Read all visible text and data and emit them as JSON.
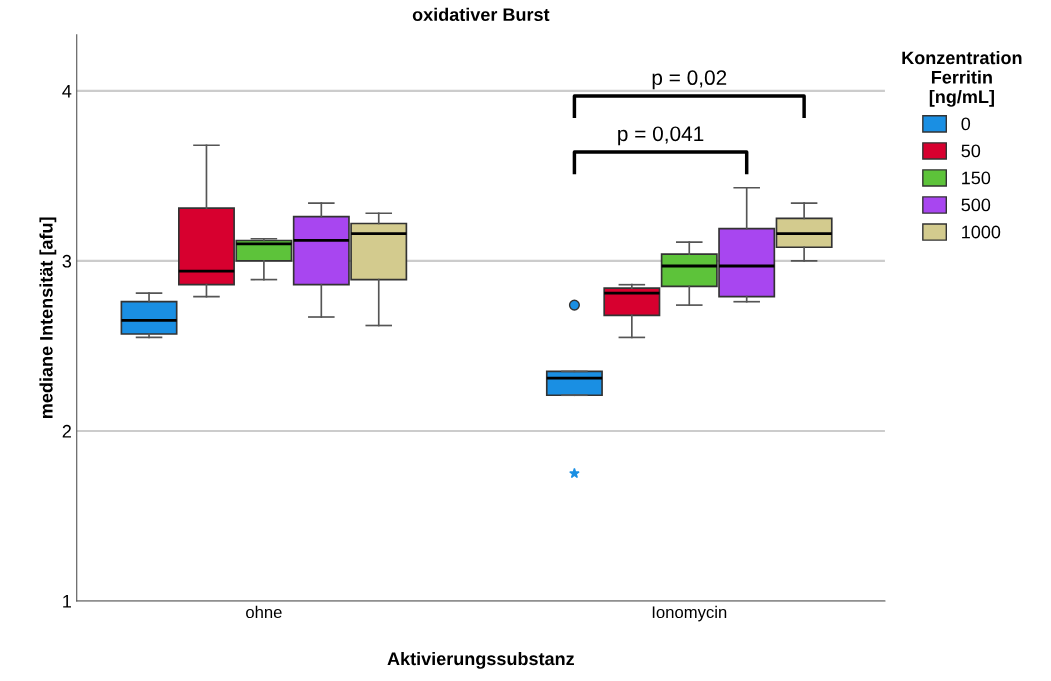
{
  "chart_data": {
    "type": "box",
    "title": "oxidativer Burst",
    "xlabel": "Aktivierungssubstanz",
    "ylabel": "mediane Intensität [afu]",
    "legend_title": "Konzentration\nFerritin\n[ng/mL]",
    "categories": [
      "ohne",
      "Ionomycin"
    ],
    "series": [
      {
        "name": "0",
        "color": "#1a8fe3",
        "boxes": [
          {
            "low": 2.55,
            "q1": 2.57,
            "median": 2.65,
            "q3": 2.76,
            "high": 2.81
          },
          {
            "low": 2.21,
            "q1": 2.21,
            "median": 2.31,
            "q3": 2.35,
            "high": 2.35,
            "outliers": [
              2.74,
              1.75
            ]
          }
        ]
      },
      {
        "name": "50",
        "color": "#d7002f",
        "boxes": [
          {
            "low": 2.79,
            "q1": 2.86,
            "median": 2.94,
            "q3": 3.31,
            "high": 3.68
          },
          {
            "low": 2.55,
            "q1": 2.68,
            "median": 2.81,
            "q3": 2.84,
            "high": 2.86
          }
        ]
      },
      {
        "name": "150",
        "color": "#5dc33a",
        "boxes": [
          {
            "low": 2.89,
            "q1": 3.0,
            "median": 3.1,
            "q3": 3.12,
            "high": 3.13
          },
          {
            "low": 2.74,
            "q1": 2.85,
            "median": 2.97,
            "q3": 3.04,
            "high": 3.11
          }
        ]
      },
      {
        "name": "500",
        "color": "#a846f0",
        "boxes": [
          {
            "low": 2.67,
            "q1": 2.86,
            "median": 3.12,
            "q3": 3.26,
            "high": 3.34
          },
          {
            "low": 2.76,
            "q1": 2.79,
            "median": 2.97,
            "q3": 3.19,
            "high": 3.43
          }
        ]
      },
      {
        "name": "1000",
        "color": "#d3cb8e",
        "boxes": [
          {
            "low": 2.62,
            "q1": 2.89,
            "median": 3.16,
            "q3": 3.22,
            "high": 3.28
          },
          {
            "low": 3.0,
            "q1": 3.08,
            "median": 3.16,
            "q3": 3.25,
            "high": 3.34
          }
        ]
      }
    ],
    "annotations": [
      "p = 0,02",
      "p = 0,041"
    ],
    "ylim": [
      1,
      4.33
    ],
    "yticks": [
      1,
      2,
      3,
      4
    ],
    "grid": "y",
    "legend": "right"
  }
}
